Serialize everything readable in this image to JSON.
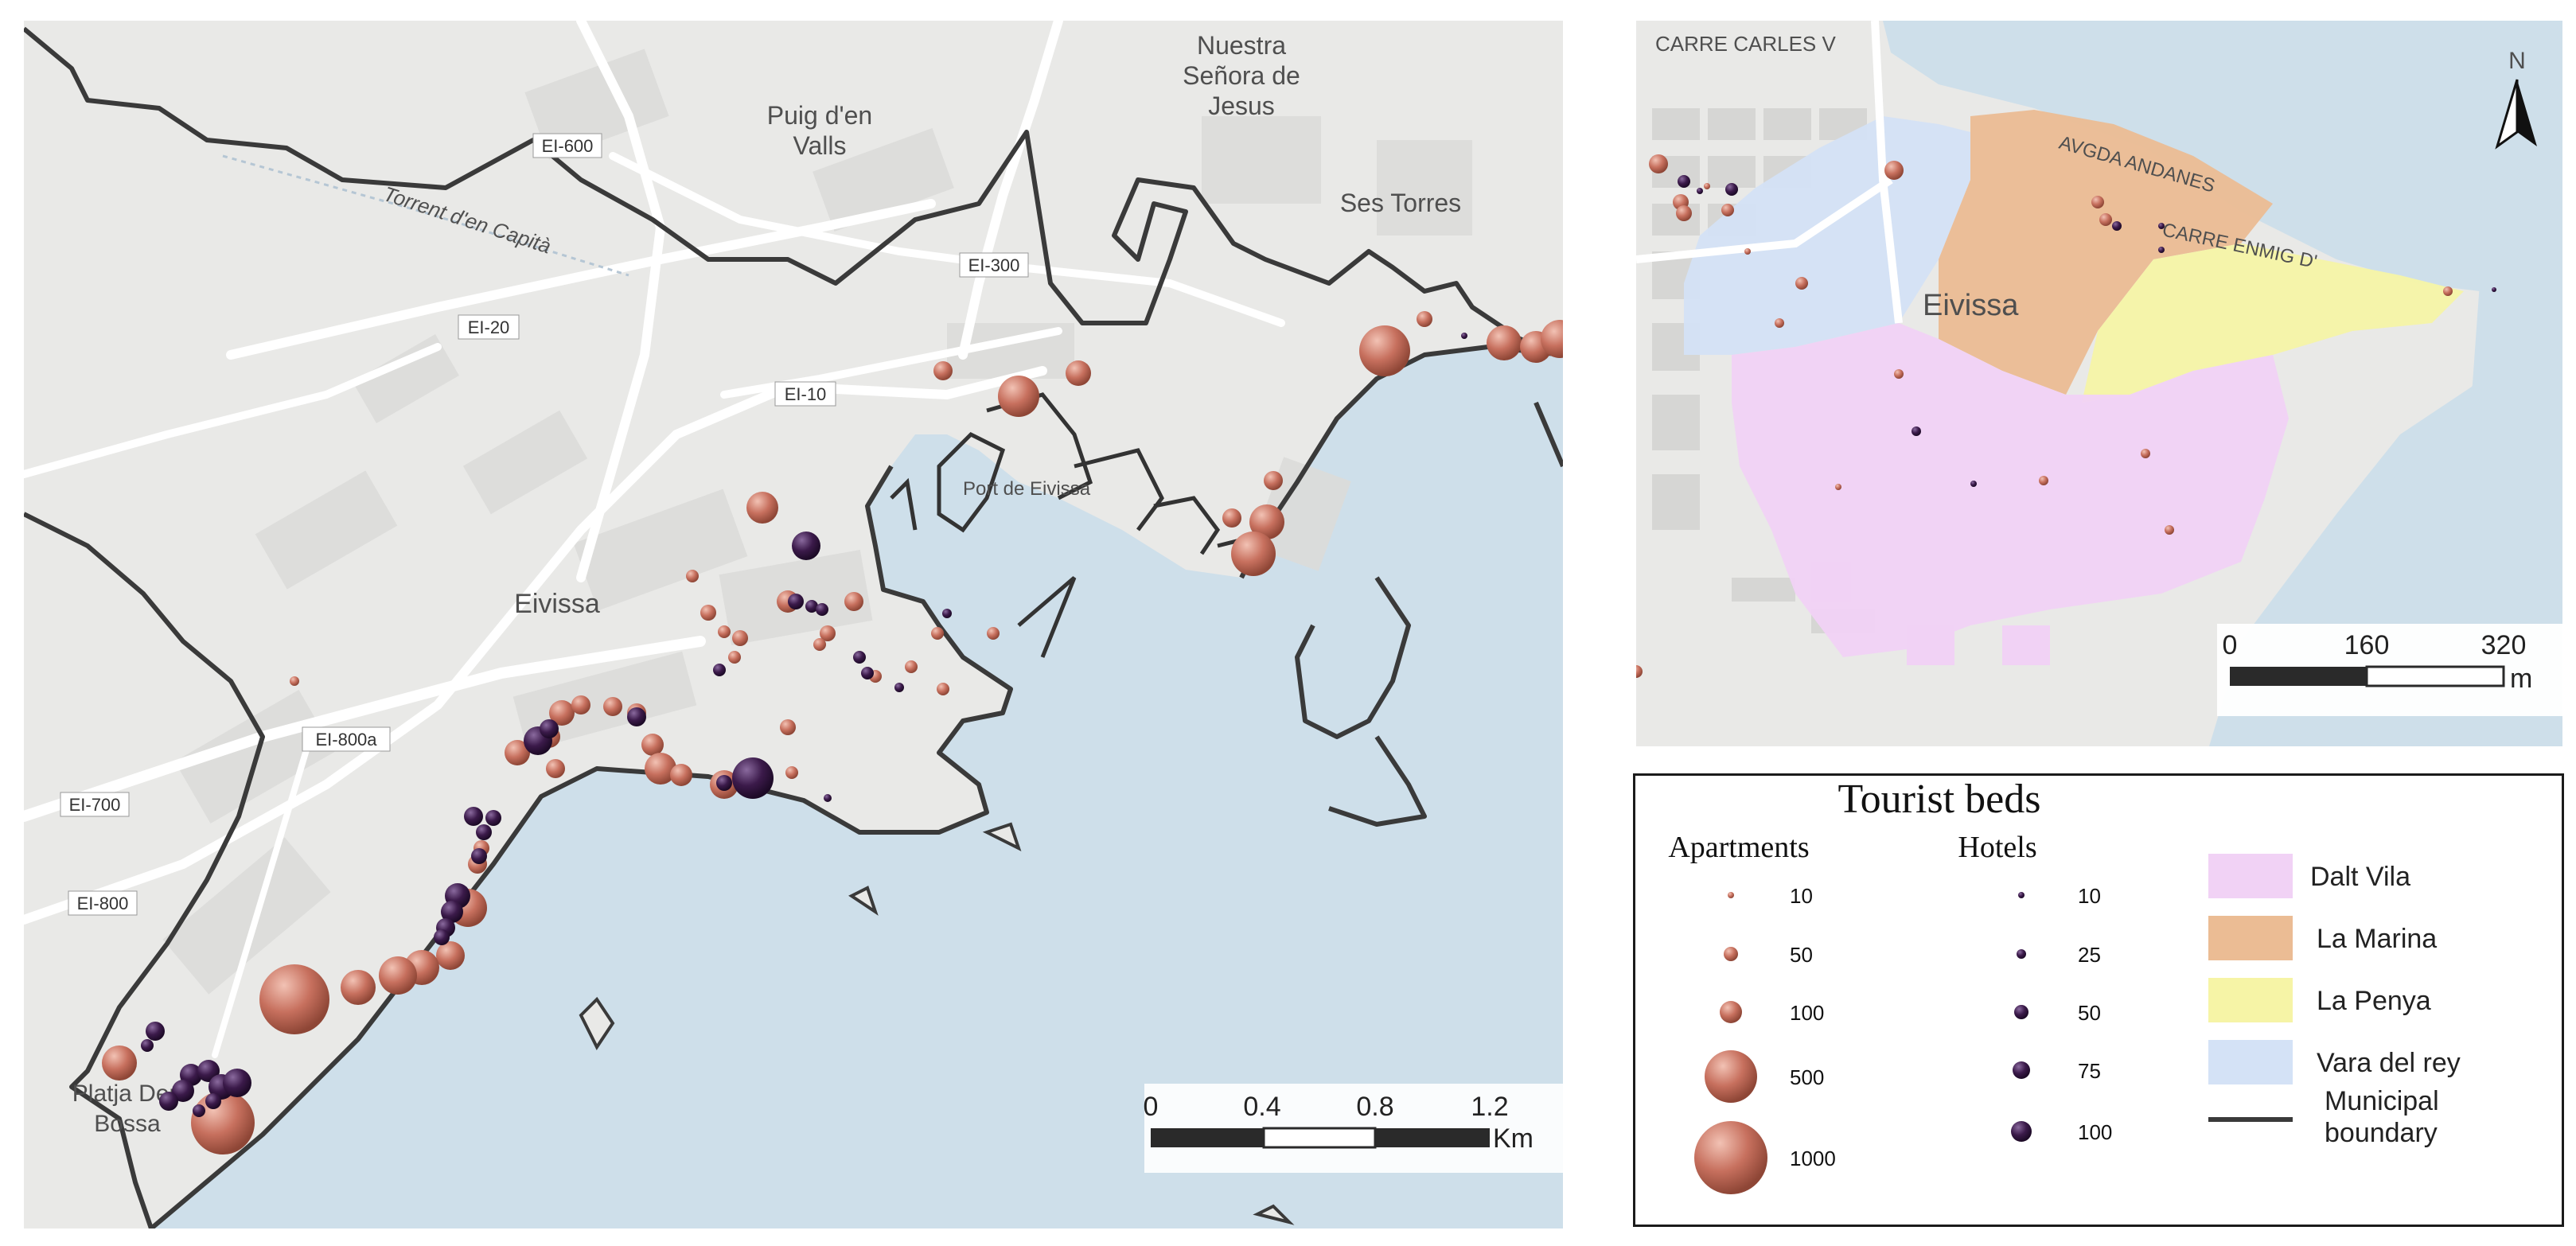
{
  "main_map": {
    "place_labels": [
      "Nuestra",
      "Señora de",
      "Jesus",
      "Puig d'en",
      "Valls",
      "Ses Torres",
      "Eivissa",
      "Platja Den",
      "Bossa",
      "Torrent d'en Capità",
      "Port de Eivissa"
    ],
    "road_labels": [
      "EI-600",
      "EI-300",
      "EI-20",
      "EI-10",
      "EI-800a",
      "EI-700",
      "EI-800"
    ],
    "scale": {
      "ticks": [
        "0",
        "0.4",
        "0.8",
        "1.2"
      ],
      "unit": "Km"
    }
  },
  "inset_map": {
    "street_labels": [
      "CARRE CARLES V",
      "AVGDA ANDANES",
      "CARRE ENMIG D'"
    ],
    "place_label": "Eivissa",
    "north_label": "N",
    "scale": {
      "ticks": [
        "0",
        "160",
        "320"
      ],
      "unit": "m"
    }
  },
  "legend": {
    "title": "Tourist beds",
    "apartments": {
      "heading": "Apartments",
      "classes": [
        "10",
        "50",
        "100",
        "500",
        "1000"
      ]
    },
    "hotels": {
      "heading": "Hotels",
      "classes": [
        "10",
        "25",
        "50",
        "75",
        "100"
      ]
    },
    "zones": [
      {
        "label": "Dalt Vila",
        "color": "#f1d2f5"
      },
      {
        "label": "La Marina",
        "color": "#ebbc94"
      },
      {
        "label": "La Penya",
        "color": "#f6f4a6"
      },
      {
        "label": "Vara del rey",
        "color": "#d4e2f6"
      }
    ],
    "boundary_line1": "Municipal",
    "boundary_line2": "boundary"
  },
  "colors": {
    "apartment_marker": "#c87462",
    "hotel_marker": "#3b1a4a",
    "sea": "#cedfea",
    "land": "#e9e9e7",
    "boundary": "#3a3a3a"
  }
}
